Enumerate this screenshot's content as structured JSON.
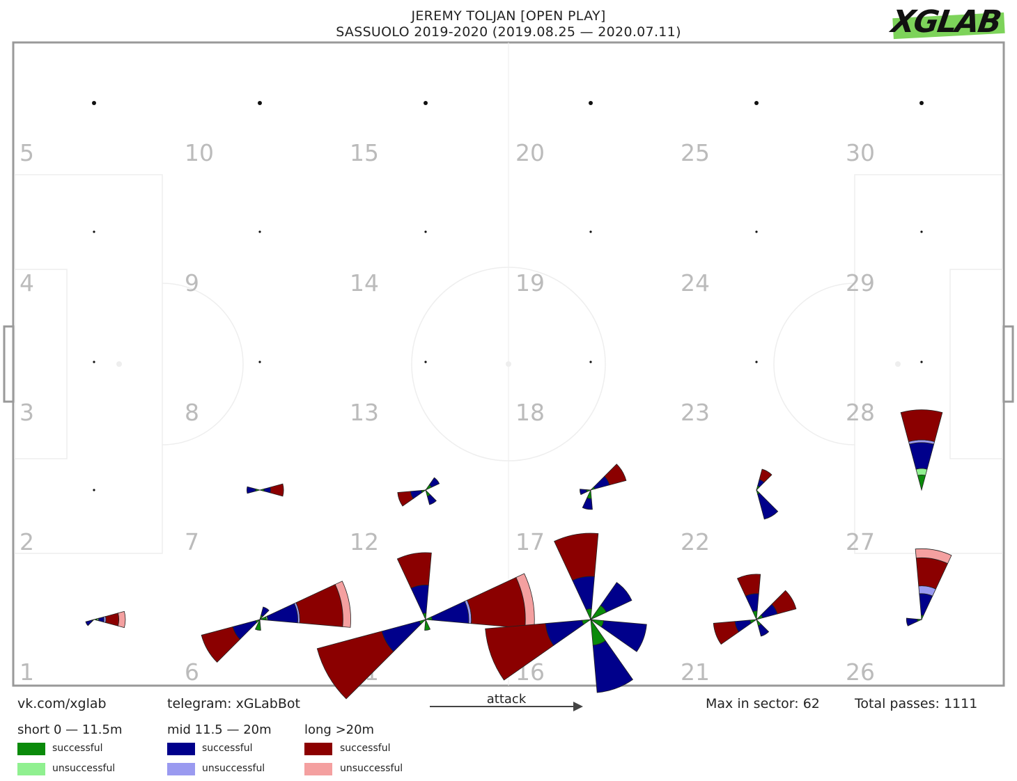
{
  "title": {
    "line1": "JEREMY TOLJAN [OPEN PLAY]",
    "line2": "SASSUOLO 2019-2020 (2019.08.25 — 2020.07.11)"
  },
  "logo_text": "XGLAB",
  "footer": {
    "vk": "vk.com/xglab",
    "telegram": "telegram: xGLabBot",
    "attack": "attack",
    "max_in_sector": "Max in sector: 62",
    "total_passes": "Total passes: 1111"
  },
  "legend": {
    "short": {
      "label": "short 0 — 11.5m",
      "successful": "successful",
      "unsuccessful": "unsuccessful",
      "color_success": "#0a8a0a",
      "color_fail": "#90f090"
    },
    "mid": {
      "label": "mid 11.5 — 20m",
      "successful": "successful",
      "unsuccessful": "unsuccessful",
      "color_success": "#00008b",
      "color_fail": "#9a9af0"
    },
    "long": {
      "label": "long >20m",
      "successful": "successful",
      "unsuccessful": "unsuccessful",
      "color_success": "#8b0000",
      "color_fail": "#f4a0a0"
    }
  },
  "chart_data": {
    "type": "pass-rose",
    "max_in_sector": 62,
    "total_passes": 1111,
    "sector_labels": [
      "1",
      "2",
      "3",
      "4",
      "5",
      "6",
      "7",
      "8",
      "9",
      "10",
      "11",
      "12",
      "13",
      "14",
      "15",
      "16",
      "17",
      "18",
      "19",
      "20",
      "21",
      "22",
      "23",
      "24",
      "25",
      "26",
      "27",
      "28",
      "29",
      "30"
    ],
    "zones": [
      {
        "zone": 1,
        "roses": [
          {
            "dir": 0,
            "short": 3,
            "short_f": 2,
            "mid": 5,
            "mid_f": 3,
            "long": 12,
            "long_f": 10
          },
          {
            "dir": 150,
            "short": 2,
            "mid": 6,
            "long": 0
          }
        ]
      },
      {
        "zone": 6,
        "roses": [
          {
            "dir": -10,
            "short": 6,
            "short_f": 2,
            "mid": 28,
            "mid_f": 3,
            "long": 40,
            "long_f": 12
          },
          {
            "dir": 150,
            "short": 4,
            "mid": 22,
            "long": 30
          },
          {
            "dir": -60,
            "short": 4,
            "mid": 8,
            "long": 0
          },
          {
            "dir": 100,
            "short": 10,
            "mid": 0,
            "long": 0
          }
        ]
      },
      {
        "zone": 11,
        "roses": [
          {
            "dir": -10,
            "short": 6,
            "mid": 34,
            "mid_f": 4,
            "long": 50,
            "long_f": 14
          },
          {
            "dir": 150,
            "short": 6,
            "mid": 36,
            "long": 62
          },
          {
            "dir": -100,
            "short": 6,
            "mid": 26,
            "long": 30
          },
          {
            "dir": 80,
            "short": 10,
            "mid": 0,
            "long": 0
          }
        ]
      },
      {
        "zone": 16,
        "roses": [
          {
            "dir": 160,
            "short": 8,
            "mid": 34,
            "long": 56
          },
          {
            "dir": -100,
            "short": 10,
            "mid": 30,
            "long": 40
          },
          {
            "dir": -40,
            "short": 16,
            "mid": 26,
            "long": 0
          },
          {
            "dir": 20,
            "short": 12,
            "mid": 40,
            "long": 0
          },
          {
            "dir": 70,
            "short": 24,
            "mid": 44,
            "long": 0
          }
        ]
      },
      {
        "zone": 21,
        "roses": [
          {
            "dir": -100,
            "short": 8,
            "mid": 16,
            "long": 18
          },
          {
            "dir": -30,
            "short": 6,
            "mid": 14,
            "long": 18
          },
          {
            "dir": 160,
            "short": 6,
            "mid": 14,
            "long": 20
          },
          {
            "dir": 60,
            "short": 6,
            "mid": 10,
            "long": 0
          }
        ]
      },
      {
        "zone": 26,
        "roses": [
          {
            "dir": -80,
            "short": 4,
            "mid": 20,
            "mid_f": 12,
            "long": 26,
            "long_f": 14
          },
          {
            "dir": 170,
            "short": 4,
            "mid": 10,
            "long": 0
          }
        ]
      },
      {
        "zone": 7,
        "roses": [
          {
            "dir": 0,
            "short": 4,
            "mid": 6,
            "long": 12
          },
          {
            "dir": 180,
            "short": 4,
            "mid": 8,
            "long": 0
          }
        ]
      },
      {
        "zone": 12,
        "roses": [
          {
            "dir": 160,
            "short": 4,
            "mid": 10,
            "long": 12
          },
          {
            "dir": -40,
            "short": 6,
            "mid": 8,
            "long": 0
          },
          {
            "dir": 60,
            "short": 6,
            "mid": 8,
            "long": 0
          }
        ]
      },
      {
        "zone": 17,
        "roses": [
          {
            "dir": -30,
            "short": 4,
            "mid": 14,
            "long": 16
          },
          {
            "dir": 100,
            "short": 8,
            "mid": 10,
            "long": 0
          },
          {
            "dir": 170,
            "short": 4,
            "mid": 6,
            "long": 0
          }
        ]
      },
      {
        "zone": 22,
        "roses": [
          {
            "dir": 60,
            "short": 4,
            "mid": 24,
            "long": 0
          },
          {
            "dir": -60,
            "short": 4,
            "mid": 6,
            "long": 10
          }
        ]
      },
      {
        "zone": 27,
        "roses": [
          {
            "dir": -90,
            "short": 14,
            "short_f": 10,
            "mid": 24,
            "mid_f": 4,
            "long": 28,
            "long_f": 0
          }
        ]
      }
    ]
  }
}
